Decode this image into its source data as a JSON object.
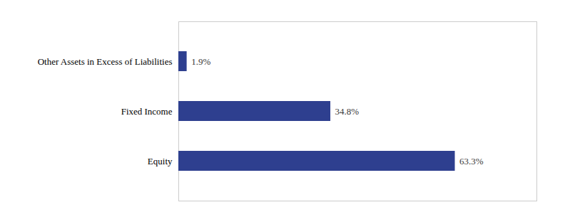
{
  "chart_data": {
    "type": "bar",
    "orientation": "horizontal",
    "categories": [
      "Other Assets in Excess of Liabilities",
      "Fixed Income",
      "Equity"
    ],
    "values": [
      1.9,
      34.8,
      63.3
    ],
    "value_labels": [
      "1.9%",
      "34.8%",
      "63.3%"
    ],
    "data_labels": true,
    "color": "#2E3F8F",
    "xlim": [
      0,
      82
    ],
    "tick_labels": "y",
    "grid": false
  }
}
